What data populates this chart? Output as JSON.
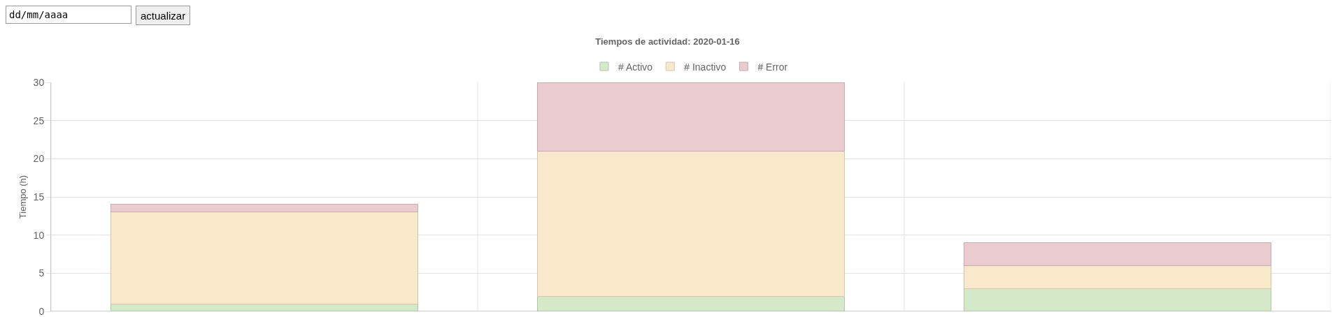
{
  "chart_data": {
    "type": "bar",
    "title": "Tiempos de actividad: 2020-01-16",
    "ylabel": "Tiempo (h)",
    "annotations": [
      "dd/mm/aaaa",
      "actualizar"
    ],
    "categories": [
      null,
      null,
      null
    ],
    "stacked": true,
    "series": [
      {
        "name": "# Activo",
        "color": "#d4e9c7",
        "values": [
          1,
          2,
          3
        ]
      },
      {
        "name": "# Inactivo",
        "color": "#f9e9cb",
        "values": [
          12,
          19,
          3
        ]
      },
      {
        "name": "# Error",
        "color": "#eacbd0",
        "values": [
          1,
          9,
          3
        ]
      }
    ],
    "ylim": [
      0,
      30
    ],
    "yticks": [
      0,
      5,
      10,
      15,
      20,
      25,
      30
    ],
    "grid": true,
    "legend": "top",
    "tick_labels": "y"
  }
}
